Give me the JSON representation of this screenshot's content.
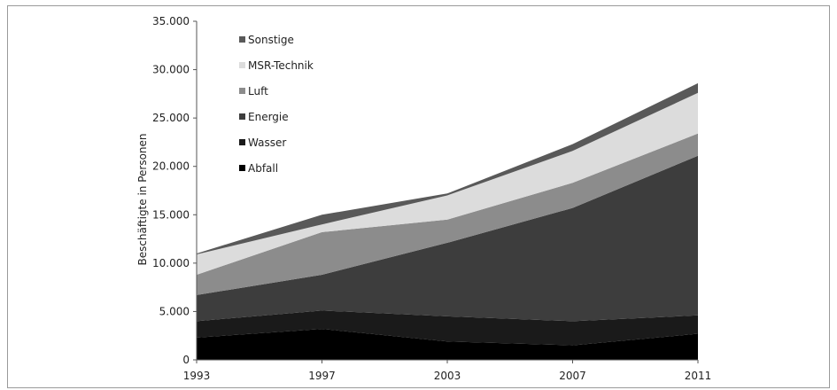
{
  "chart_data": {
    "type": "area",
    "stacked": true,
    "title": "",
    "xlabel": "",
    "ylabel": "Beschäftigte in Personen",
    "x": [
      "1993",
      "1997",
      "2003",
      "2007",
      "2011"
    ],
    "ylim": [
      0,
      35000
    ],
    "y_ticks": [
      "0",
      "5.000",
      "10.000",
      "15.000",
      "20.000",
      "25.000",
      "30.000",
      "35.000"
    ],
    "y_tick_values": [
      0,
      5000,
      10000,
      15000,
      20000,
      25000,
      30000,
      35000
    ],
    "grid": false,
    "legend_position": "top-left",
    "series": [
      {
        "name": "Abfall",
        "color": "#000000",
        "values": [
          2300,
          3200,
          1900,
          1500,
          2700
        ]
      },
      {
        "name": "Wasser",
        "color": "#1a1a1a",
        "values": [
          1700,
          1900,
          2600,
          2500,
          1900
        ]
      },
      {
        "name": "Energie",
        "color": "#3d3d3d",
        "values": [
          2700,
          3700,
          7600,
          11700,
          16500
        ]
      },
      {
        "name": "Luft",
        "color": "#8c8c8c",
        "values": [
          2100,
          4400,
          2400,
          2600,
          2300
        ]
      },
      {
        "name": "MSR-Technik",
        "color": "#dcdcdc",
        "values": [
          2100,
          800,
          2500,
          3300,
          4200
        ]
      },
      {
        "name": "Sonstige",
        "color": "#595959",
        "values": [
          100,
          1000,
          200,
          700,
          1000
        ]
      }
    ],
    "legend_order": [
      "Sonstige",
      "MSR-Technik",
      "Luft",
      "Energie",
      "Wasser",
      "Abfall"
    ]
  }
}
